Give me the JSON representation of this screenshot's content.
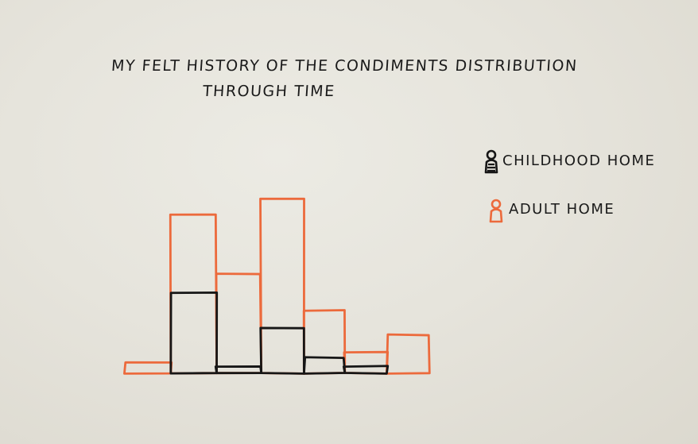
{
  "chart_data": {
    "type": "bar",
    "title_line_1": "MY FELT HISTORY OF THE CONDIMENTS DISTRIBUTION",
    "title_line_2": "THROUGH TIME",
    "categories": [
      "",
      "",
      "",
      "",
      "",
      "",
      "",
      ""
    ],
    "series": [
      {
        "name": "CHILDHOOD HOME",
        "color": "#161616",
        "legend_icon": "figure-icon",
        "values": [
          0,
          0.46,
          0.04,
          0.26,
          0.09,
          0.04,
          0,
          0
        ]
      },
      {
        "name": "ADULT HOME",
        "color": "#ec6a3c",
        "legend_icon": "figure-icon",
        "values": [
          0.06,
          0.91,
          0.57,
          1.0,
          0.36,
          0.12,
          0.22,
          0
        ]
      }
    ],
    "ylim": [
      0,
      1
    ],
    "xlabel": "",
    "ylabel": "",
    "axes_visible": false,
    "grid": false,
    "legend_position": "top-right",
    "style": "hand-drawn"
  }
}
